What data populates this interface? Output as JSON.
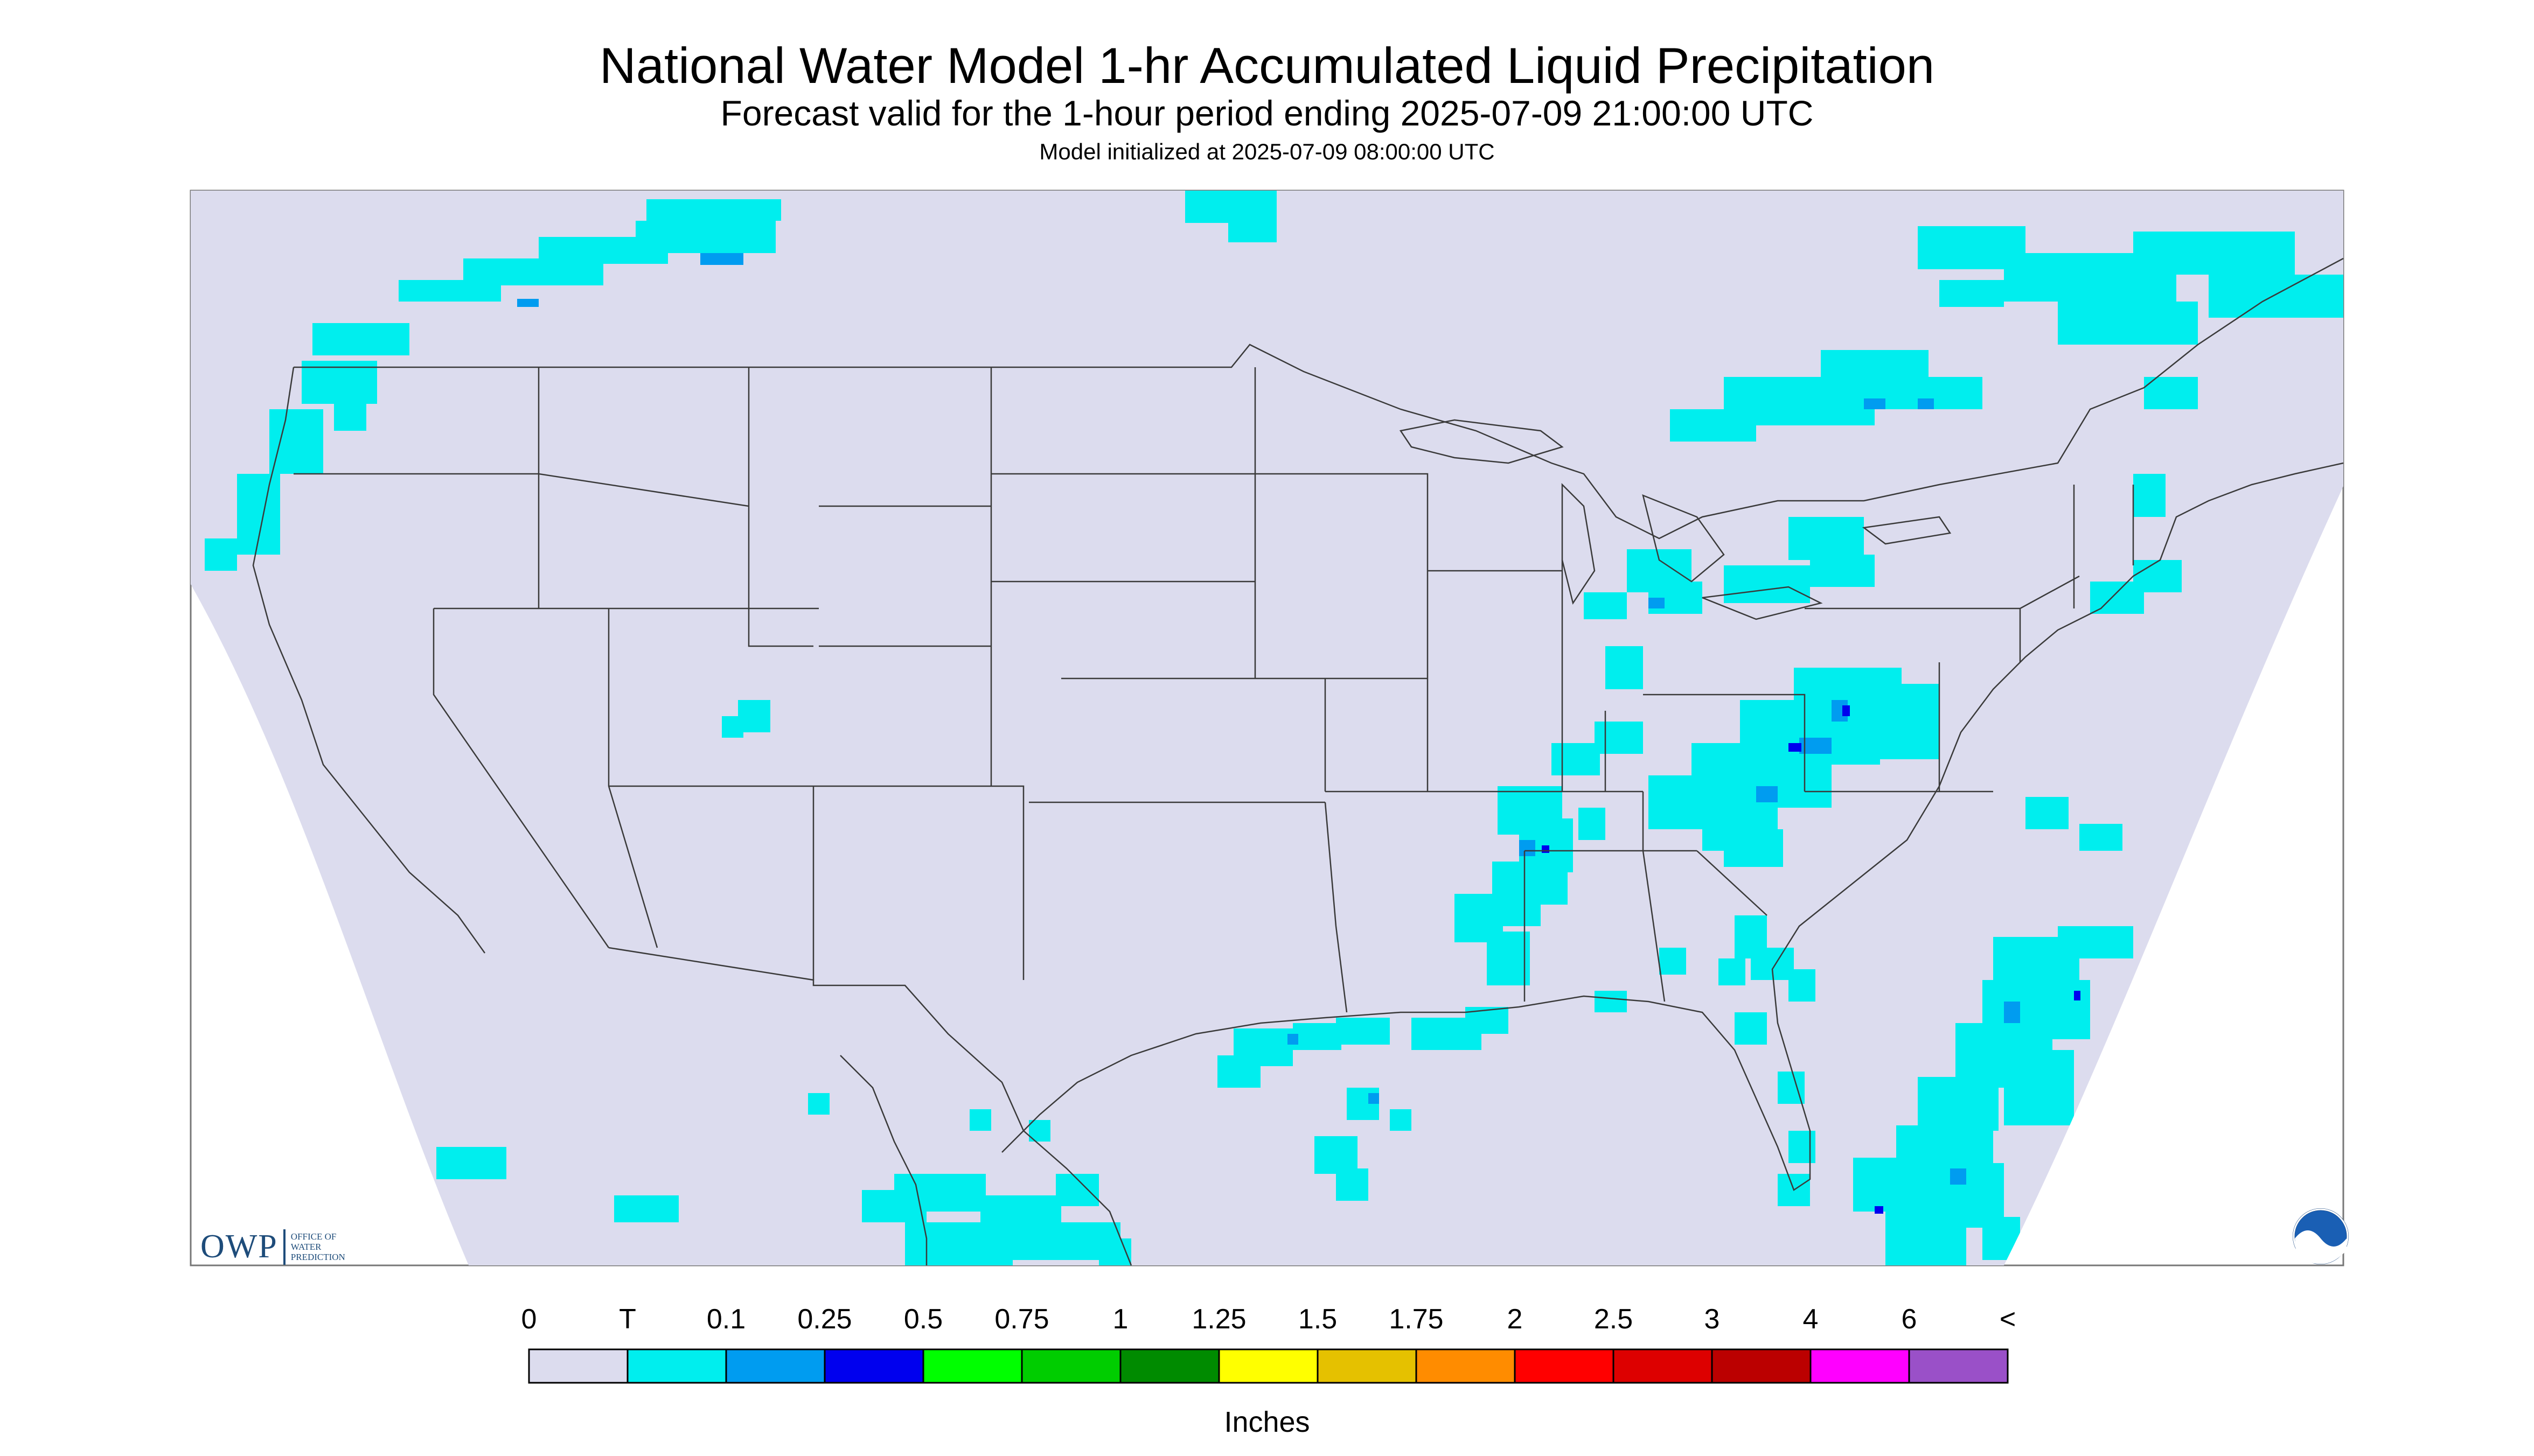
{
  "title": "National Water Model 1-hr Accumulated Liquid Precipitation",
  "subtitle": "Forecast valid for the 1-hour period ending 2025-07-09 21:00:00 UTC",
  "init_line": "Model initialized at 2025-07-09 08:00:00 UTC",
  "legend": {
    "labels": [
      "0",
      "T",
      "0.1",
      "0.25",
      "0.5",
      "0.75",
      "1",
      "1.25",
      "1.5",
      "1.75",
      "2",
      "2.5",
      "3",
      "4",
      "6",
      "<"
    ],
    "colors": [
      "#dcdcee",
      "#00eeee",
      "#009cf0",
      "#0000ee",
      "#00ff00",
      "#00cd00",
      "#008b00",
      "#ffff00",
      "#e5c100",
      "#ff8c00",
      "#ff0000",
      "#dd0000",
      "#bb0000",
      "#ff00ff",
      "#9a50c8"
    ],
    "units": "Inches"
  },
  "logos": {
    "owp_mark": "OWP",
    "owp_text": [
      "Office of",
      "Water",
      "Prediction"
    ],
    "noaa": "NOAA"
  },
  "map": {
    "no_data_color": "#ffffff",
    "background_color": "#dcdcee",
    "boundary_color": "#3a3a3a",
    "precip_light": "#00eeee",
    "precip_moderate": "#009cf0",
    "precip_heavy": "#0000ee"
  }
}
